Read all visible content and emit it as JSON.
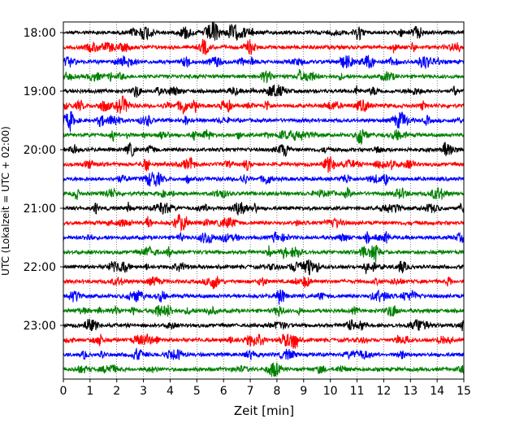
{
  "chart_data": {
    "type": "line",
    "title": "",
    "xlabel": "Zeit  [min]",
    "ylabel": "UTC (Lokalzeit = UTC + 02:00)",
    "xlim": [
      0,
      15
    ],
    "x_ticks": [
      "0",
      "1",
      "2",
      "3",
      "4",
      "5",
      "6",
      "7",
      "8",
      "9",
      "10",
      "11",
      "12",
      "13",
      "14",
      "15"
    ],
    "y_tick_labels": [
      "18:00",
      "19:00",
      "20:00",
      "21:00",
      "22:00",
      "23:00"
    ],
    "vertical_grid": true,
    "grid_style": "dotted",
    "trace_colors": [
      "#000000",
      "#ff0000",
      "#0000ff",
      "#008000"
    ],
    "trace_start_times": [
      "18:00",
      "18:15",
      "18:30",
      "18:45",
      "19:00",
      "19:15",
      "19:30",
      "19:45",
      "20:00",
      "20:15",
      "20:30",
      "20:45",
      "21:00",
      "21:15",
      "21:30",
      "21:45",
      "22:00",
      "22:15",
      "22:30",
      "22:45",
      "23:00",
      "23:15",
      "23:30",
      "23:45"
    ],
    "trace_duration_min": 15
  }
}
